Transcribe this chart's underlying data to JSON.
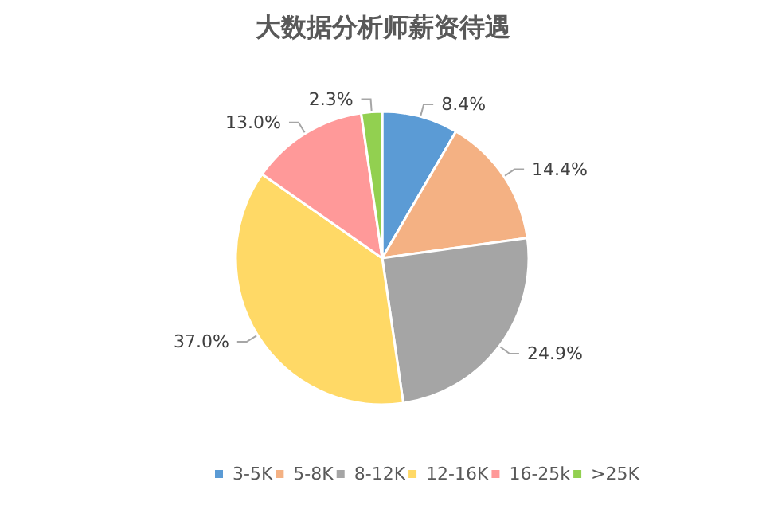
{
  "chart_data": {
    "type": "pie",
    "title": "大数据分析师薪资待遇",
    "categories": [
      "3-5K",
      "5-8K",
      "8-12K",
      "12-16K",
      "16-25k",
      ">25K"
    ],
    "values": [
      8.4,
      14.4,
      24.9,
      37.0,
      13.0,
      2.3
    ],
    "colors": [
      "#5b9bd5",
      "#f4b183",
      "#a5a5a5",
      "#ffd966",
      "#ff9999",
      "#92d050"
    ],
    "value_labels": [
      "8.4%",
      "14.4%",
      "24.9%",
      "37.0%",
      "13.0%",
      "2.3%"
    ],
    "legend": "bottom"
  }
}
